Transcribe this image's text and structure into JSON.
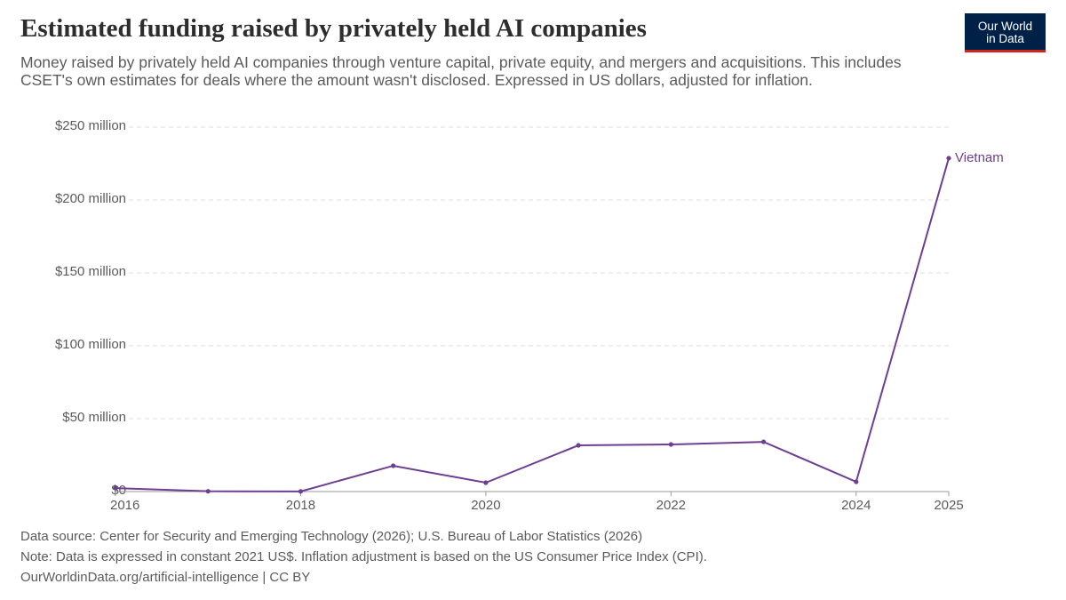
{
  "chart_data": {
    "type": "line",
    "title": "Estimated funding raised by privately held AI companies",
    "subtitle": "Money raised by privately held AI companies through venture capital, private equity, and mergers and acquisitions. This includes CSET's own estimates for deals where the amount wasn't disclosed. Expressed in US dollars, adjusted for inflation.",
    "x": [
      2016,
      2017,
      2018,
      2019,
      2020,
      2021,
      2022,
      2023,
      2024,
      2025
    ],
    "series": [
      {
        "name": "Vietnam",
        "color": "#6d3e91",
        "values": [
          2400000,
          200000,
          100000,
          17700000,
          6100000,
          31700000,
          32300000,
          34100000,
          6700000,
          228700000
        ]
      }
    ],
    "xlim": [
      2016,
      2025
    ],
    "xticks": [
      2016,
      2018,
      2020,
      2022,
      2024,
      2025
    ],
    "ylim": [
      0,
      250000000
    ],
    "yticks": [
      {
        "value": 0,
        "label": "$0"
      },
      {
        "value": 50000000,
        "label": "$50 million"
      },
      {
        "value": 100000000,
        "label": "$100 million"
      },
      {
        "value": 150000000,
        "label": "$150 million"
      },
      {
        "value": 200000000,
        "label": "$200 million"
      },
      {
        "value": 250000000,
        "label": "$250 million"
      }
    ],
    "grid": true,
    "source": "Data source: Center for Security and Emerging Technology (2026); U.S. Bureau of Labor Statistics (2026)",
    "note": "Note: Data is expressed in constant 2021 US$. Inflation adjustment is based on the US Consumer Price Index (CPI).",
    "url": "OurWorldinData.org/artificial-intelligence | CC BY"
  },
  "logo": {
    "line1": "Our World",
    "line2": "in Data"
  }
}
